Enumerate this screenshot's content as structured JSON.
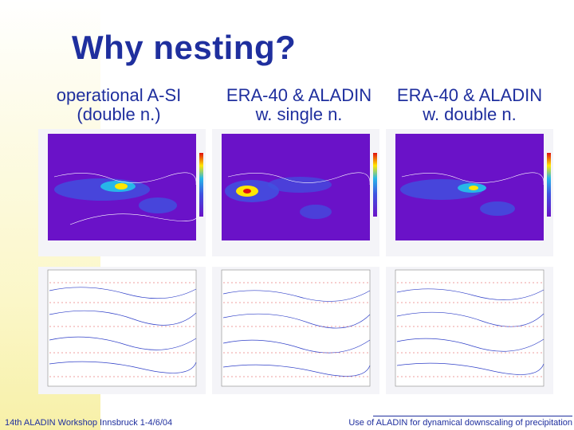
{
  "slide": {
    "title": "Why nesting?",
    "columns": [
      {
        "line1": "operational A-SI",
        "line2": "(double n.)"
      },
      {
        "line1": "ERA-40 & ALADIN",
        "line2": "w. single n."
      },
      {
        "line1": "ERA-40 & ALADIN",
        "line2": "w. double n."
      }
    ],
    "footer_left": "14th ALADIN Workshop Innsbruck 1-4/6/04",
    "footer_right": "Use of ALADIN for dynamical downscaling of  precipitation"
  },
  "colors": {
    "title": "#1f2f9e",
    "map_background": "#6a12c8",
    "precip_high": "#ffe600",
    "accent": "#fbf7c8"
  }
}
